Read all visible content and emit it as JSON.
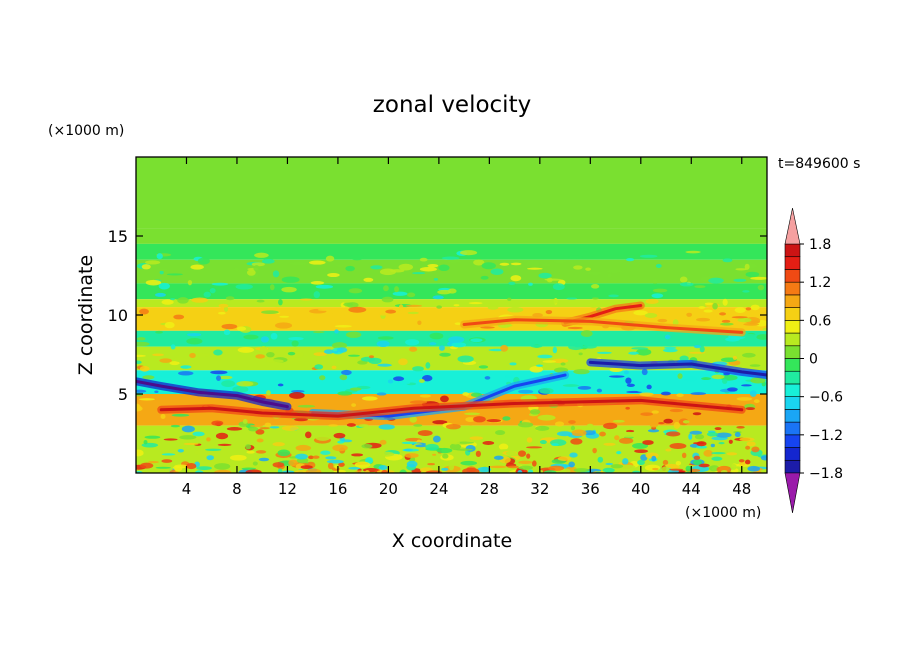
{
  "chart_data": {
    "type": "heatmap",
    "title": "zonal velocity",
    "time_label": "t=849600 s",
    "xlabel": "X coordinate",
    "ylabel": "Z coordinate",
    "x_unit": "(×1000 m)",
    "y_unit": "(×1000 m)",
    "xlim": [
      0,
      50
    ],
    "ylim": [
      0,
      20
    ],
    "x_ticks": [
      4,
      8,
      12,
      16,
      20,
      24,
      28,
      32,
      36,
      40,
      44,
      48
    ],
    "y_ticks": [
      5,
      10,
      15
    ],
    "colorbar": {
      "levels": [
        -2.0,
        -1.8,
        -1.6,
        -1.4,
        -1.2,
        -1.0,
        -0.8,
        -0.6,
        -0.4,
        -0.2,
        0.0,
        0.2,
        0.4,
        0.6,
        0.8,
        1.0,
        1.2,
        1.4,
        1.6,
        1.8,
        2.0
      ],
      "tick_labels": [
        "1.8",
        "1.2",
        "0.6",
        "0",
        "−0.6",
        "−1.2",
        "−1.8"
      ],
      "tick_values": [
        1.8,
        1.2,
        0.6,
        0,
        -0.6,
        -1.2,
        -1.8
      ],
      "colors": [
        "#9a1aaa",
        "#4b0c8c",
        "#1c1ca8",
        "#1426cf",
        "#1644f0",
        "#1a74f5",
        "#1aa6f5",
        "#1ad5f0",
        "#18f0d8",
        "#20eba0",
        "#34e65a",
        "#7ae030",
        "#b8ea20",
        "#f0f014",
        "#f5d014",
        "#f5a814",
        "#f57a14",
        "#f04a14",
        "#e41e14",
        "#cc1414",
        "#f5a0a0"
      ]
    },
    "bands": [
      {
        "z_min": 15.5,
        "z_max": 20,
        "value": 0.0
      },
      {
        "z_min": 14.5,
        "z_max": 15.5,
        "value": 0.15
      },
      {
        "z_min": 13.5,
        "z_max": 14.5,
        "value": -0.1
      },
      {
        "z_min": 12.0,
        "z_max": 13.5,
        "value": 0.1
      },
      {
        "z_min": 11.0,
        "z_max": 12.0,
        "value": -0.15
      },
      {
        "z_min": 10.5,
        "z_max": 11.0,
        "value": 0.35
      },
      {
        "z_min": 9.0,
        "z_max": 10.5,
        "value": 0.6
      },
      {
        "z_min": 8.0,
        "z_max": 9.0,
        "value": -0.3
      },
      {
        "z_min": 6.5,
        "z_max": 8.0,
        "value": 0.2
      },
      {
        "z_min": 5.0,
        "z_max": 6.5,
        "value": -0.5
      },
      {
        "z_min": 3.0,
        "z_max": 5.0,
        "value": 0.8
      },
      {
        "z_min": 0.0,
        "z_max": 3.0,
        "value": 0.3
      }
    ],
    "features": [
      {
        "x": [
          0,
          2,
          5,
          8,
          10,
          12
        ],
        "z": [
          5.8,
          5.5,
          5.1,
          4.9,
          4.5,
          4.2
        ],
        "value": -1.5
      },
      {
        "x": [
          14,
          20,
          26,
          30,
          34
        ],
        "z": [
          3.8,
          3.6,
          4.2,
          5.5,
          6.2
        ],
        "value": -1.0
      },
      {
        "x": [
          36,
          40,
          44,
          48,
          50
        ],
        "z": [
          7.0,
          6.8,
          6.9,
          6.4,
          6.2
        ],
        "value": -1.3
      },
      {
        "x": [
          34,
          36,
          38,
          40
        ],
        "z": [
          9.5,
          9.9,
          10.4,
          10.6
        ],
        "value": 1.0
      },
      {
        "x": [
          2,
          6,
          10,
          16,
          22,
          30,
          40,
          48
        ],
        "z": [
          4.0,
          4.1,
          3.8,
          3.6,
          4.1,
          4.4,
          4.6,
          4.0
        ],
        "value": 1.3
      },
      {
        "x": [
          26,
          30,
          36,
          42,
          48
        ],
        "z": [
          9.4,
          9.7,
          9.6,
          9.2,
          8.9
        ],
        "value": 0.8
      }
    ]
  }
}
